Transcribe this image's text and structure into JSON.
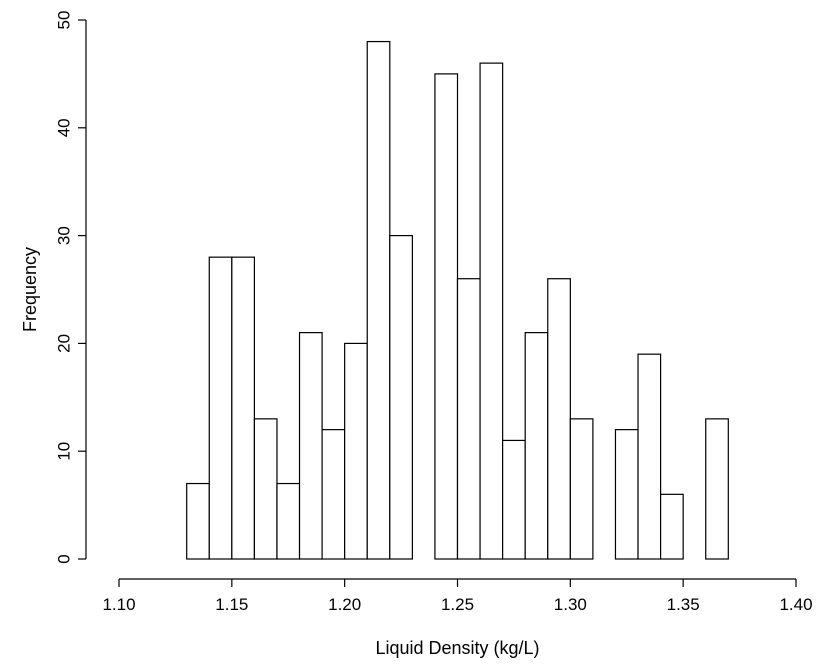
{
  "chart_data": {
    "type": "bar",
    "title": "",
    "xlabel": "Liquid Density (kg/L)",
    "ylabel": "Frequency",
    "xlim": [
      1.1,
      1.4
    ],
    "ylim": [
      0,
      50
    ],
    "x_ticks": [
      "1.10",
      "1.15",
      "1.20",
      "1.25",
      "1.30",
      "1.35",
      "1.40"
    ],
    "y_ticks": [
      "0",
      "10",
      "20",
      "30",
      "40",
      "50"
    ],
    "bin_width": 0.01,
    "bins": [
      {
        "start": 1.13,
        "end": 1.14,
        "count": 7
      },
      {
        "start": 1.14,
        "end": 1.15,
        "count": 28
      },
      {
        "start": 1.15,
        "end": 1.16,
        "count": 28
      },
      {
        "start": 1.16,
        "end": 1.17,
        "count": 13
      },
      {
        "start": 1.17,
        "end": 1.18,
        "count": 7
      },
      {
        "start": 1.18,
        "end": 1.19,
        "count": 21
      },
      {
        "start": 1.19,
        "end": 1.2,
        "count": 12
      },
      {
        "start": 1.2,
        "end": 1.21,
        "count": 20
      },
      {
        "start": 1.21,
        "end": 1.22,
        "count": 48
      },
      {
        "start": 1.22,
        "end": 1.23,
        "count": 30
      },
      {
        "start": 1.23,
        "end": 1.24,
        "count": 0
      },
      {
        "start": 1.24,
        "end": 1.25,
        "count": 45
      },
      {
        "start": 1.25,
        "end": 1.26,
        "count": 26
      },
      {
        "start": 1.26,
        "end": 1.27,
        "count": 46
      },
      {
        "start": 1.27,
        "end": 1.28,
        "count": 11
      },
      {
        "start": 1.28,
        "end": 1.29,
        "count": 21
      },
      {
        "start": 1.29,
        "end": 1.3,
        "count": 26
      },
      {
        "start": 1.3,
        "end": 1.31,
        "count": 13
      },
      {
        "start": 1.31,
        "end": 1.32,
        "count": 0
      },
      {
        "start": 1.32,
        "end": 1.33,
        "count": 12
      },
      {
        "start": 1.33,
        "end": 1.34,
        "count": 19
      },
      {
        "start": 1.34,
        "end": 1.35,
        "count": 6
      },
      {
        "start": 1.35,
        "end": 1.36,
        "count": 0
      },
      {
        "start": 1.36,
        "end": 1.37,
        "count": 13
      }
    ],
    "grid": false,
    "legend": "none",
    "bar_fill": "#ffffff",
    "bar_stroke": "#000000"
  }
}
